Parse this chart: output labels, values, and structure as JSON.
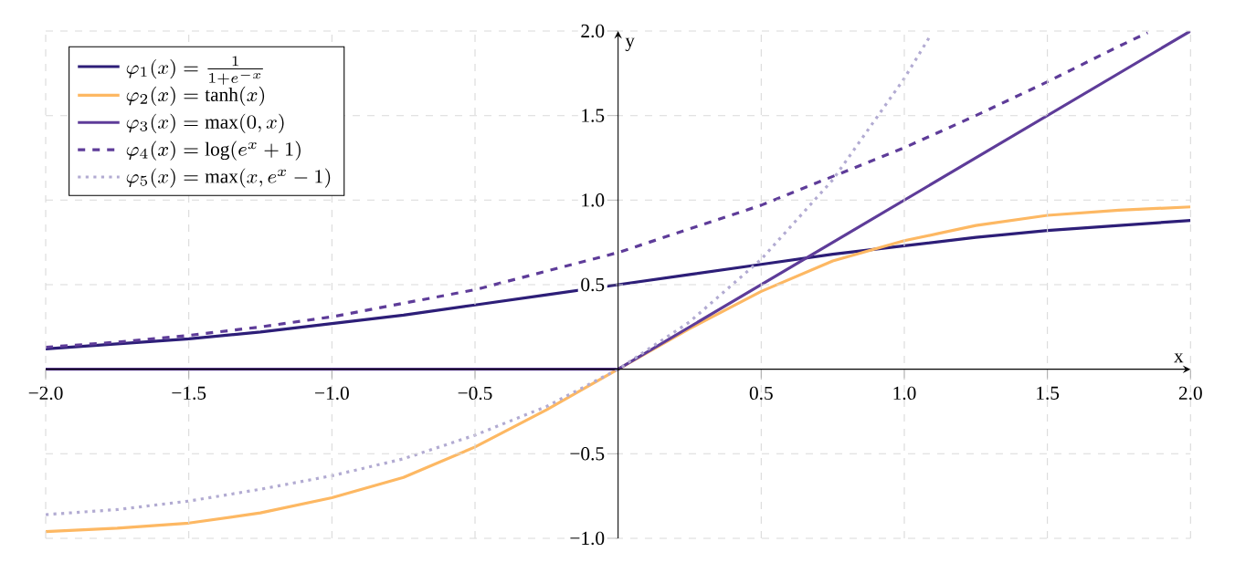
{
  "chart_data": {
    "type": "line",
    "xlabel": "x",
    "ylabel": "y",
    "xlim": [
      -2,
      2
    ],
    "ylim": [
      -1,
      2
    ],
    "xticks": [
      {
        "value": -2,
        "label": "−2.0"
      },
      {
        "value": -1.5,
        "label": "−1.5"
      },
      {
        "value": -1,
        "label": "−1.0"
      },
      {
        "value": -0.5,
        "label": "−0.5"
      },
      {
        "value": 0,
        "label": null
      },
      {
        "value": 0.5,
        "label": "0.5"
      },
      {
        "value": 1,
        "label": "1.0"
      },
      {
        "value": 1.5,
        "label": "1.5"
      },
      {
        "value": 2,
        "label": "2.0"
      }
    ],
    "yticks": [
      {
        "value": -1,
        "label": "−1.0"
      },
      {
        "value": -0.5,
        "label": "−0.5"
      },
      {
        "value": 0,
        "label": null
      },
      {
        "value": 0.5,
        "label": "0.5"
      },
      {
        "value": 1,
        "label": "1.0"
      },
      {
        "value": 1.5,
        "label": "1.5"
      },
      {
        "value": 2,
        "label": "2.0"
      }
    ],
    "grid": true,
    "legend": "top left",
    "marker": "none",
    "series": [
      {
        "name": "\\varphi_1(x) = \\frac{1}{1+e^{-x}}",
        "color": "#2d1e78",
        "line_style": "solid",
        "x": [
          -2,
          -1.75,
          -1.5,
          -1.25,
          -1,
          -0.75,
          -0.5,
          -0.25,
          0,
          0.25,
          0.5,
          0.75,
          1,
          1.25,
          1.5,
          1.75,
          2
        ],
        "values": [
          0.12,
          0.15,
          0.18,
          0.22,
          0.27,
          0.32,
          0.38,
          0.44,
          0.5,
          0.56,
          0.62,
          0.68,
          0.73,
          0.78,
          0.82,
          0.85,
          0.88
        ]
      },
      {
        "name": "\\varphi_2(x) = \\tanh(x)",
        "color": "#fdb863",
        "line_style": "solid",
        "x": [
          -2,
          -1.75,
          -1.5,
          -1.25,
          -1,
          -0.75,
          -0.5,
          -0.25,
          0,
          0.25,
          0.5,
          0.75,
          1,
          1.25,
          1.5,
          1.75,
          2
        ],
        "values": [
          -0.96,
          -0.94,
          -0.91,
          -0.85,
          -0.76,
          -0.64,
          -0.46,
          -0.24,
          0,
          0.24,
          0.46,
          0.64,
          0.76,
          0.85,
          0.91,
          0.94,
          0.96
        ]
      },
      {
        "name": "\\varphi_3(x) = \\max(0, x)",
        "color": "#5e3c99",
        "line_style": "solid",
        "x": [
          -2,
          0,
          2
        ],
        "values": [
          0,
          0,
          2
        ]
      },
      {
        "name": "\\varphi_4(x) = \\log(e^x + 1)",
        "color": "#5e3c99",
        "line_style": "dashed",
        "x": [
          -2,
          -1.75,
          -1.5,
          -1.25,
          -1,
          -0.75,
          -0.5,
          -0.25,
          0,
          0.25,
          0.5,
          0.75,
          1,
          1.25,
          1.5,
          1.75,
          1.85
        ],
        "values": [
          0.13,
          0.16,
          0.2,
          0.25,
          0.31,
          0.39,
          0.47,
          0.58,
          0.69,
          0.83,
          0.97,
          1.14,
          1.31,
          1.5,
          1.7,
          1.91,
          1.99
        ]
      },
      {
        "name": "\\varphi_5(x) = \\max(x, e^x - 1)",
        "color": "#b2abd2",
        "line_style": "dotted",
        "x": [
          -2,
          -1.75,
          -1.5,
          -1.25,
          -1,
          -0.75,
          -0.5,
          -0.25,
          0,
          0.25,
          0.5,
          0.75,
          1,
          1.09
        ],
        "values": [
          -0.86,
          -0.83,
          -0.78,
          -0.71,
          -0.63,
          -0.53,
          -0.39,
          -0.22,
          0,
          0.28,
          0.65,
          1.12,
          1.72,
          1.97
        ]
      }
    ]
  }
}
